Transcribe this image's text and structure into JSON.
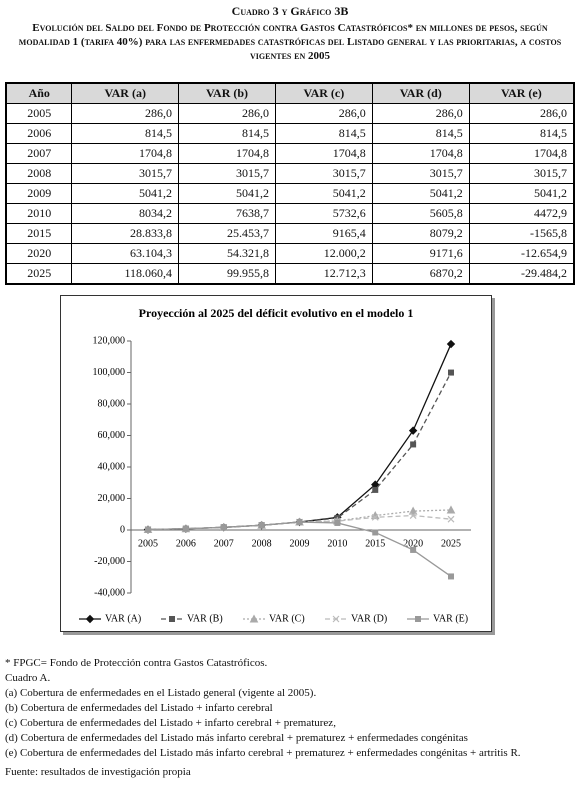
{
  "header": {
    "title": "Cuadro 3 y Gráfico 3B",
    "subtitle": "Evolución del Saldo del Fondo de Protección contra Gastos Catastróficos* en millones de pesos, según modalidad 1 (tarifa 40%) para las enfermedades catastróficas del Listado general y las prioritarias, a costos vigentes en 2005"
  },
  "table": {
    "columns": [
      "Año",
      "VAR (a)",
      "VAR (b)",
      "VAR (c)",
      "VAR (d)",
      "VAR (e)"
    ],
    "rows": [
      [
        "2005",
        "286,0",
        "286,0",
        "286,0",
        "286,0",
        "286,0"
      ],
      [
        "2006",
        "814,5",
        "814,5",
        "814,5",
        "814,5",
        "814,5"
      ],
      [
        "2007",
        "1704,8",
        "1704,8",
        "1704,8",
        "1704,8",
        "1704,8"
      ],
      [
        "2008",
        "3015,7",
        "3015,7",
        "3015,7",
        "3015,7",
        "3015,7"
      ],
      [
        "2009",
        "5041,2",
        "5041,2",
        "5041,2",
        "5041,2",
        "5041,2"
      ],
      [
        "2010",
        "8034,2",
        "7638,7",
        "5732,6",
        "5605,8",
        "4472,9"
      ],
      [
        "2015",
        "28.833,8",
        "25.453,7",
        "9165,4",
        "8079,2",
        "-1565,8"
      ],
      [
        "2020",
        "63.104,3",
        "54.321,8",
        "12.000,2",
        "9171,6",
        "-12.654,9"
      ],
      [
        "2025",
        "118.060,4",
        "99.955,8",
        "12.712,3",
        "6870,2",
        "-29.484,2"
      ]
    ]
  },
  "chart_data": {
    "type": "line",
    "title": "Proyección al 2025 del déficit evolutivo en el modelo 1",
    "categories": [
      "2005",
      "2006",
      "2007",
      "2008",
      "2009",
      "2010",
      "2015",
      "2020",
      "2025"
    ],
    "ylim": [
      -40000,
      120000
    ],
    "yticks": [
      {
        "value": -40000,
        "label": "-40,000"
      },
      {
        "value": -20000,
        "label": "-20,000"
      },
      0,
      {
        "value": 20000,
        "label": "20,000"
      },
      {
        "value": 40000,
        "label": "40,000"
      },
      {
        "value": 60000,
        "label": "60,000"
      },
      {
        "value": 80000,
        "label": "80,000"
      },
      {
        "value": 100000,
        "label": "100,000"
      },
      {
        "value": 120000,
        "label": "120,000"
      }
    ],
    "series": [
      {
        "name": "VAR (A)",
        "color": "#111111",
        "values": [
          286,
          814.5,
          1704.8,
          3015.7,
          5041.2,
          8034.2,
          28833.8,
          63104.3,
          118060.4
        ]
      },
      {
        "name": "VAR (B)",
        "color": "#555555",
        "values": [
          286,
          814.5,
          1704.8,
          3015.7,
          5041.2,
          7638.7,
          25453.7,
          54321.8,
          99955.8
        ]
      },
      {
        "name": "VAR (C)",
        "color": "#aaaaaa",
        "values": [
          286,
          814.5,
          1704.8,
          3015.7,
          5041.2,
          5732.6,
          9165.4,
          12000.2,
          12712.3
        ]
      },
      {
        "name": "VAR (D)",
        "color": "#bbbbbb",
        "values": [
          286,
          814.5,
          1704.8,
          3015.7,
          5041.2,
          5605.8,
          8079.2,
          9171.6,
          6870.2
        ]
      },
      {
        "name": "VAR (E)",
        "color": "#999999",
        "values": [
          286,
          814.5,
          1704.8,
          3015.7,
          5041.2,
          4472.9,
          -1565.8,
          -12654.9,
          -29484.2
        ]
      }
    ]
  },
  "notes": [
    "* FPGC= Fondo de Protección contra Gastos Catastróficos.",
    "Cuadro A.",
    "(a) Cobertura de enfermedades en el Listado general (vigente al 2005).",
    "(b) Cobertura de enfermedades del Listado + infarto cerebral",
    "(c) Cobertura de enfermedades del Listado + infarto cerebral + prematurez,",
    "(d) Cobertura de enfermedades del Listado más infarto cerebral + prematurez + enfermedades congénitas",
    "(e) Cobertura de enfermedades del Listado más infarto cerebral + prematurez + enfermedades congénitas + artritis R."
  ],
  "source": "Fuente: resultados de investigación propia"
}
